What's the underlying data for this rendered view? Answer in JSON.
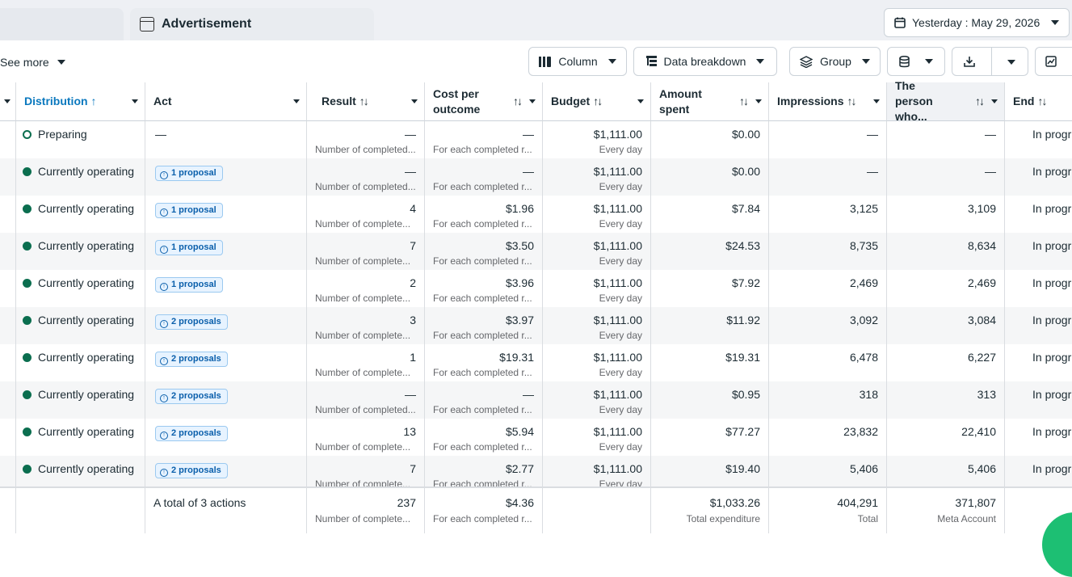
{
  "tabs": {
    "ad_label": "Advertisement"
  },
  "date_button": {
    "label": "Yesterday : May 29, 2026"
  },
  "toolbar": {
    "see_more": "See more",
    "column": "Column",
    "data_breakdown": "Data breakdown",
    "group": "Group"
  },
  "columns": {
    "distribution": "Distribution",
    "act": "Act",
    "result": "Result",
    "cost_per_outcome": "Cost per outcome",
    "budget": "Budget",
    "amount_spent": "Amount spent",
    "impressions": "Impressions",
    "person": "The person who...",
    "end": "End"
  },
  "rows": [
    {
      "status": "Preparing",
      "status_type": "hollow",
      "act": "—",
      "result": "—",
      "result_sub": "Number of completed...",
      "cost": "—",
      "cost_sub": "For each completed r...",
      "budget": "$1,111.00",
      "budget_sub": "Every day",
      "spent": "$0.00",
      "impressions": "—",
      "person": "—",
      "end": "In progr"
    },
    {
      "status": "Currently operating",
      "status_type": "filled",
      "act": "1 proposal",
      "result": "—",
      "result_sub": "Number of completed...",
      "cost": "—",
      "cost_sub": "For each completed r...",
      "budget": "$1,111.00",
      "budget_sub": "Every day",
      "spent": "$0.00",
      "impressions": "—",
      "person": "—",
      "end": "In progr"
    },
    {
      "status": "Currently operating",
      "status_type": "filled",
      "act": "1 proposal",
      "result": "4",
      "result_sub": "Number of complete...",
      "cost": "$1.96",
      "cost_sub": "For each completed r...",
      "budget": "$1,111.00",
      "budget_sub": "Every day",
      "spent": "$7.84",
      "impressions": "3,125",
      "person": "3,109",
      "end": "In progr"
    },
    {
      "status": "Currently operating",
      "status_type": "filled",
      "act": "1 proposal",
      "result": "7",
      "result_sub": "Number of complete...",
      "cost": "$3.50",
      "cost_sub": "For each completed r...",
      "budget": "$1,111.00",
      "budget_sub": "Every day",
      "spent": "$24.53",
      "impressions": "8,735",
      "person": "8,634",
      "end": "In progr"
    },
    {
      "status": "Currently operating",
      "status_type": "filled",
      "act": "1 proposal",
      "result": "2",
      "result_sub": "Number of complete...",
      "cost": "$3.96",
      "cost_sub": "For each completed r...",
      "budget": "$1,111.00",
      "budget_sub": "Every day",
      "spent": "$7.92",
      "impressions": "2,469",
      "person": "2,469",
      "end": "In progr"
    },
    {
      "status": "Currently operating",
      "status_type": "filled",
      "act": "2 proposals",
      "result": "3",
      "result_sub": "Number of complete...",
      "cost": "$3.97",
      "cost_sub": "For each completed r...",
      "budget": "$1,111.00",
      "budget_sub": "Every day",
      "spent": "$11.92",
      "impressions": "3,092",
      "person": "3,084",
      "end": "In progr"
    },
    {
      "status": "Currently operating",
      "status_type": "filled",
      "act": "2 proposals",
      "result": "1",
      "result_sub": "Number of complete...",
      "cost": "$19.31",
      "cost_sub": "For each completed r...",
      "budget": "$1,111.00",
      "budget_sub": "Every day",
      "spent": "$19.31",
      "impressions": "6,478",
      "person": "6,227",
      "end": "In progr"
    },
    {
      "status": "Currently operating",
      "status_type": "filled",
      "act": "2 proposals",
      "result": "—",
      "result_sub": "Number of completed...",
      "cost": "—",
      "cost_sub": "For each completed r...",
      "budget": "$1,111.00",
      "budget_sub": "Every day",
      "spent": "$0.95",
      "impressions": "318",
      "person": "313",
      "end": "In progr"
    },
    {
      "status": "Currently operating",
      "status_type": "filled",
      "act": "2 proposals",
      "result": "13",
      "result_sub": "Number of complete...",
      "cost": "$5.94",
      "cost_sub": "For each completed r...",
      "budget": "$1,111.00",
      "budget_sub": "Every day",
      "spent": "$77.27",
      "impressions": "23,832",
      "person": "22,410",
      "end": "In progr"
    },
    {
      "status": "Currently operating",
      "status_type": "filled",
      "act": "2 proposals",
      "result": "7",
      "result_sub": "Number of complete...",
      "cost": "$2.77",
      "cost_sub": "For each completed r...",
      "budget": "$1,111.00",
      "budget_sub": "Every day",
      "spent": "$19.40",
      "impressions": "5,406",
      "person": "5,406",
      "end": "In progr"
    }
  ],
  "totals": {
    "label": "A total of 3 actions",
    "result": "237",
    "result_sub": "Number of complete...",
    "cost": "$4.36",
    "cost_sub": "For each completed r...",
    "spent": "$1,033.26",
    "spent_sub": "Total expenditure",
    "impressions": "404,291",
    "impressions_sub": "Total",
    "person": "371,807",
    "person_sub": "Meta Account"
  },
  "colors": {
    "status_green": "#0b6e4f",
    "active_header": "#0a78be",
    "proposal_bg": "#e7f3ff"
  }
}
